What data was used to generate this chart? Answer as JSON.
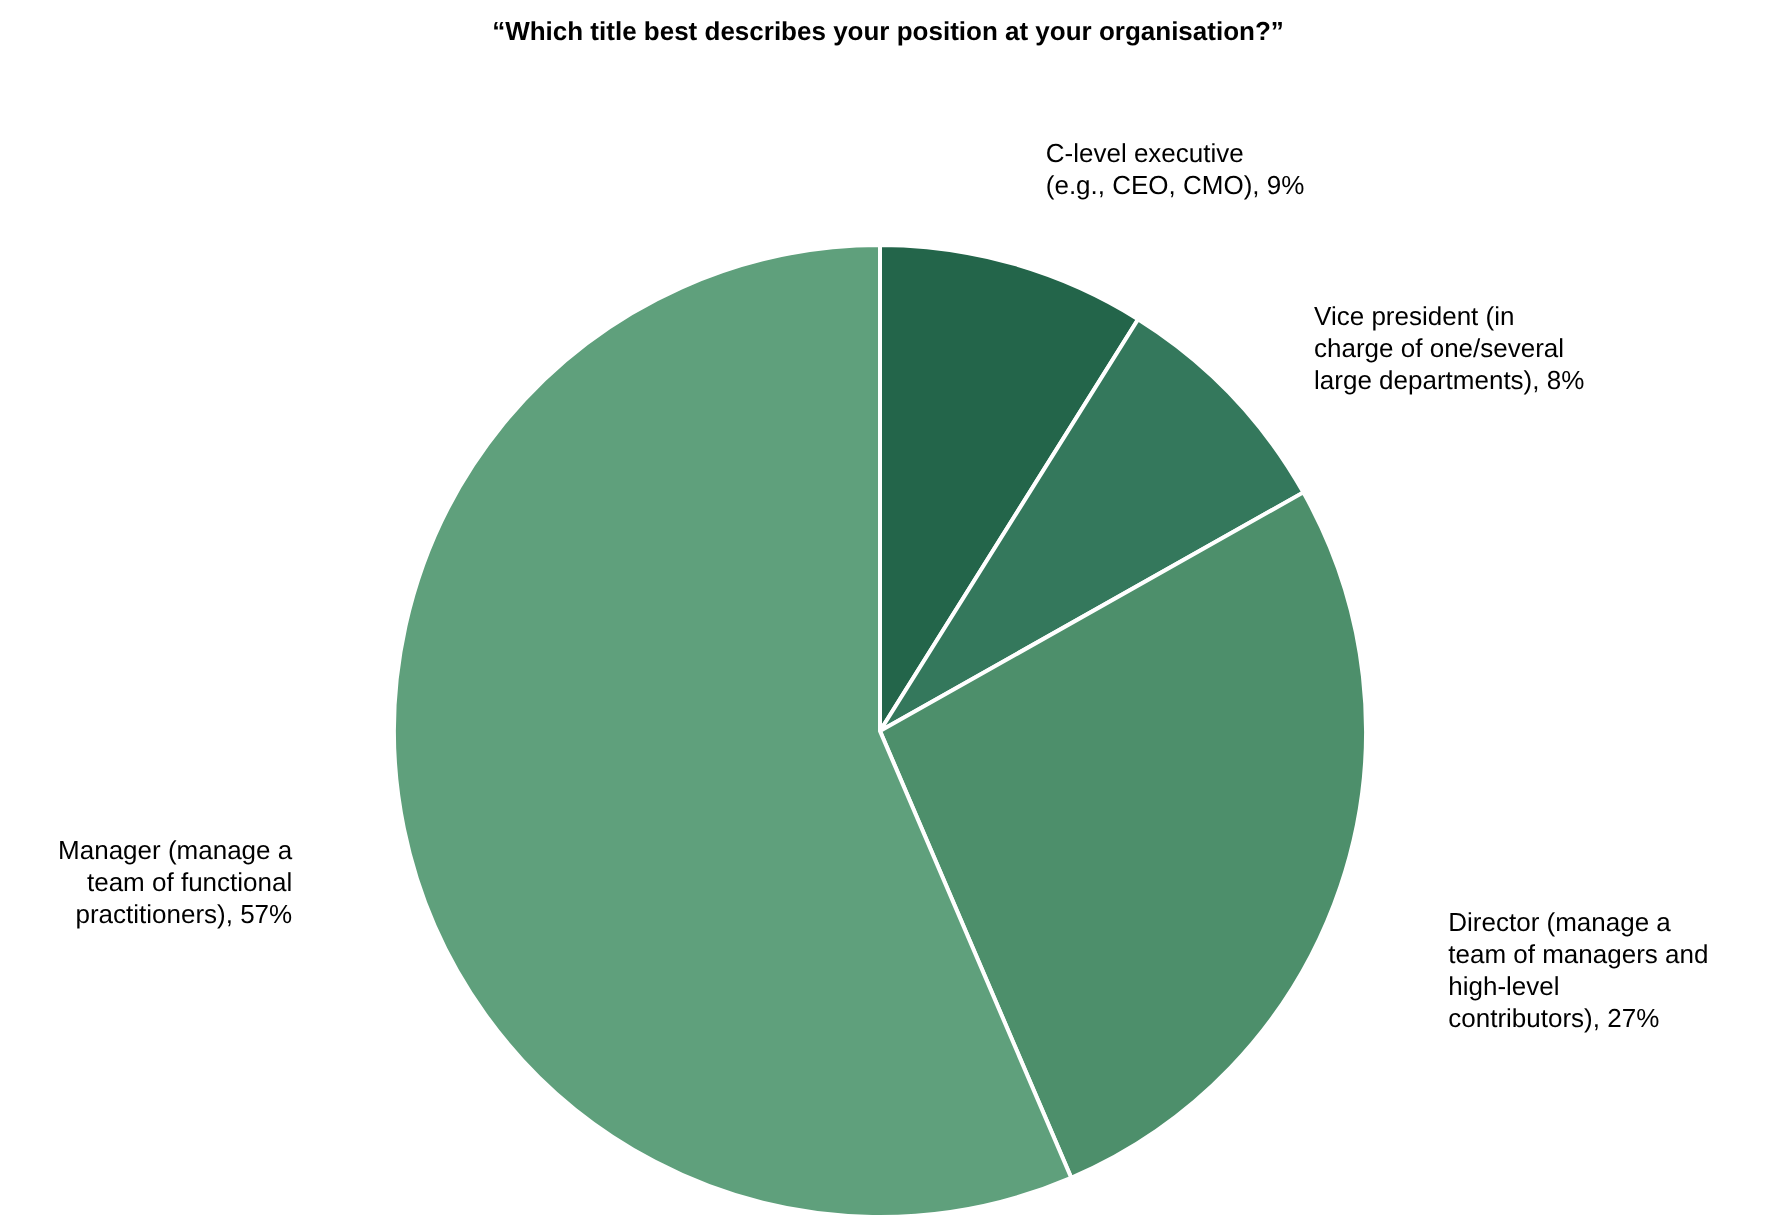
{
  "chart_data": {
    "type": "pie",
    "title": "“Which title best describes your position at your organisation?”",
    "categories": [
      "C-level executive (e.g., CEO, CMO)",
      "Vice president (in charge of one/several large departments)",
      "Director (manage a team of managers and high-level contributors)",
      "Manager (manage a team of functional practitioners)"
    ],
    "values": [
      9,
      8,
      27,
      57
    ],
    "value_labels": [
      "9%",
      "8%",
      "27%",
      "57%"
    ],
    "colors": [
      "#23654a",
      "#34785c",
      "#4d8f6b",
      "#5fa07c"
    ]
  }
}
